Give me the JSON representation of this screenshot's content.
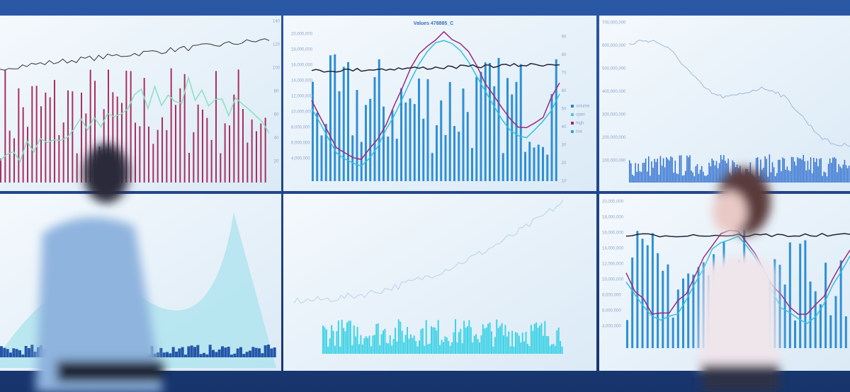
{
  "screens": {
    "top_left": {
      "right_axis": [
        "140",
        "120",
        "100",
        "80",
        "60",
        "40",
        "20"
      ]
    },
    "top_center": {
      "title": "Values 478885_C",
      "left_axis": [
        "20,000,000",
        "18,000,000",
        "16,000,000",
        "14,000,000",
        "12,000,000",
        "10,000,000",
        "8,000,000",
        "6,000,000",
        "4,000,000"
      ],
      "right_axis": [
        "90",
        "80",
        "70",
        "60",
        "50",
        "40",
        "30",
        "20",
        "10"
      ],
      "legend": [
        "volume",
        "open",
        "high",
        "low"
      ]
    },
    "top_right": {
      "left_axis": [
        "700,000,000",
        "600,000,000",
        "500,000,000",
        "400,000,000",
        "300,000,000",
        "200,000,000",
        "100,000,000"
      ]
    },
    "bottom_right": {
      "left_axis": [
        "20,000,000",
        "18,000,000",
        "16,000,000",
        "14,000,000",
        "12,000,000",
        "10,000,000",
        "8,000,000",
        "6,000,000",
        "4,000,000"
      ]
    }
  }
}
